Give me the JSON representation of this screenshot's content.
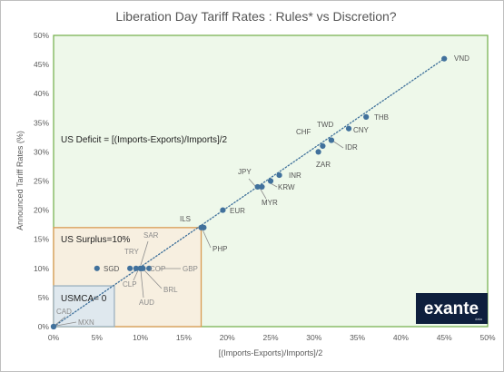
{
  "chart_data": {
    "type": "scatter",
    "title": "Liberation Day Tariff Rates : Rules* vs Discretion?",
    "xlabel": "[(Imports-Exports)/Imports]/2",
    "ylabel": "Announced Tariff Rates (%)",
    "xlim": [
      0,
      50
    ],
    "ylim": [
      0,
      50
    ],
    "xticks": [
      "0%",
      "5%",
      "10%",
      "15%",
      "20%",
      "25%",
      "30%",
      "35%",
      "40%",
      "45%",
      "50%"
    ],
    "yticks": [
      "0%",
      "5%",
      "10%",
      "15%",
      "20%",
      "25%",
      "30%",
      "35%",
      "40%",
      "45%",
      "50%"
    ],
    "grid": false,
    "trendline": {
      "style": "dotted",
      "from": [
        0,
        0
      ],
      "to": [
        45,
        46
      ]
    },
    "points": [
      {
        "label": "VND",
        "x": 45.0,
        "y": 46
      },
      {
        "label": "THB",
        "x": 36.0,
        "y": 36
      },
      {
        "label": "CNY",
        "x": 34.0,
        "y": 34
      },
      {
        "label": "TWD",
        "x": 32.0,
        "y": 32
      },
      {
        "label": "IDR",
        "x": 32.0,
        "y": 32
      },
      {
        "label": "CHF",
        "x": 31.0,
        "y": 31
      },
      {
        "label": "ZAR",
        "x": 30.5,
        "y": 30
      },
      {
        "label": "INR",
        "x": 26.0,
        "y": 26
      },
      {
        "label": "KRW",
        "x": 25.0,
        "y": 25
      },
      {
        "label": "JPY",
        "x": 23.5,
        "y": 24
      },
      {
        "label": "MYR",
        "x": 24.0,
        "y": 24
      },
      {
        "label": "EUR",
        "x": 19.5,
        "y": 20
      },
      {
        "label": "ILS",
        "x": 17.0,
        "y": 17
      },
      {
        "label": "PHP",
        "x": 17.3,
        "y": 17
      },
      {
        "label": "SGD",
        "x": 5.0,
        "y": 10
      },
      {
        "label": "TRY",
        "x": 8.8,
        "y": 10
      },
      {
        "label": "SAR",
        "x": 10.0,
        "y": 10
      },
      {
        "label": "COP",
        "x": 10.2,
        "y": 10
      },
      {
        "label": "GBP",
        "x": 11.0,
        "y": 10
      },
      {
        "label": "CLP",
        "x": 9.5,
        "y": 10
      },
      {
        "label": "BRL",
        "x": 10.3,
        "y": 10
      },
      {
        "label": "AUD",
        "x": 10.0,
        "y": 10
      },
      {
        "label": "CAD",
        "x": 0,
        "y": 0
      },
      {
        "label": "MXN",
        "x": 0,
        "y": 0
      }
    ],
    "regions": [
      {
        "label": "US Deficit = [(Imports-Exports)/Imports]/2",
        "x0": 0,
        "x1": 50,
        "y0": 0,
        "y1": 50,
        "fill": "#eef8ea",
        "stroke": "#70ad47"
      },
      {
        "label": "US Surplus=10%",
        "x0": 0,
        "x1": 17,
        "y0": 0,
        "y1": 17,
        "fill": "#f7efe0",
        "stroke": "#d99b52"
      },
      {
        "label": "USMCA= 0",
        "x0": 0,
        "x1": 7,
        "y0": 0,
        "y1": 7,
        "fill": "#dfe8ee",
        "stroke": "#9bb0bf"
      }
    ],
    "colors": {
      "marker": "#41719c",
      "trendline": "#3d6f9a",
      "frame": "#bfbfbf"
    }
  },
  "logo": {
    "text": "exante",
    "sub": "data"
  }
}
